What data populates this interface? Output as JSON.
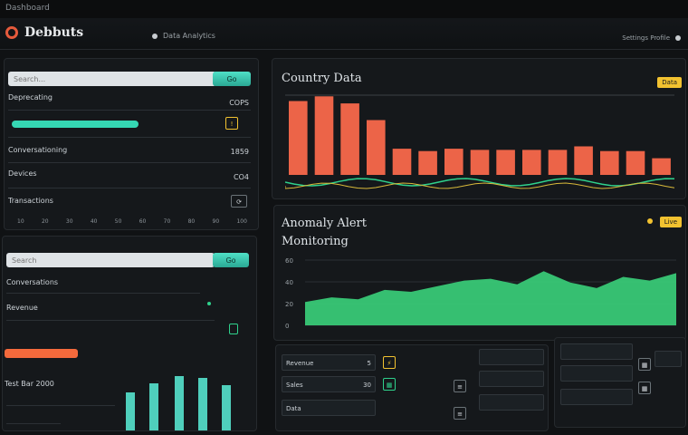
{
  "window": {
    "title": "Dashboard"
  },
  "header": {
    "brand": "Debbuts",
    "center_text": "Data Analytics",
    "right_text": "Settings Profile"
  },
  "left_top": {
    "search_placeholder": "Search...",
    "search_button": "Go",
    "rows": [
      {
        "label": "Deprecating",
        "value": "COPS"
      },
      {
        "label": "",
        "value": ""
      },
      {
        "label": "Conversationing",
        "value": "1859"
      },
      {
        "label": "Devices",
        "value": "CO4"
      },
      {
        "label": "Transactions",
        "value": ""
      }
    ],
    "bar": {
      "fraction": 0.55,
      "color": "#35d7b3"
    },
    "ticks": [
      "10",
      "20",
      "30",
      "40",
      "50",
      "60",
      "70",
      "80",
      "90",
      "100"
    ]
  },
  "left_bottom": {
    "search_placeholder": "Search",
    "search_button": "Go",
    "rows": [
      {
        "label": "Conversations"
      },
      {
        "label": "Revenue"
      },
      {
        "label": "Test Bar 2000"
      }
    ],
    "orange_bar_fraction": 0.35,
    "colors": {
      "orange": "#f46a3c",
      "green": "#2fd18c",
      "cyan": "#59f0d8"
    }
  },
  "chart_top": {
    "title": "Country Data",
    "badge": "Data",
    "chart_data": {
      "type": "bar",
      "values": [
        62,
        66,
        60,
        46,
        22,
        20,
        22,
        21,
        21,
        21,
        21,
        24,
        20,
        20,
        14
      ],
      "ylim": [
        0,
        70
      ],
      "bar_color": "#ec6448"
    }
  },
  "chart_bottom": {
    "title_line1": "Anomaly Alert",
    "title_line2": "Monitoring",
    "badge": "Live",
    "chart_data": {
      "type": "area",
      "y_ticks": [
        "60",
        "40",
        "20",
        "0"
      ],
      "values": [
        25,
        30,
        28,
        38,
        36,
        42,
        48,
        50,
        44,
        58,
        46,
        40,
        52,
        48,
        56
      ],
      "ylim": [
        0,
        70
      ],
      "fill_color": "#3ad27b"
    }
  },
  "bottom_tables": {
    "rows": [
      {
        "label": "Revenue",
        "value": "5"
      },
      {
        "label": "Sales",
        "value": "30"
      },
      {
        "label": "Data",
        "value": ""
      }
    ],
    "icons": [
      "bolt-icon",
      "grid-icon",
      "list-icon"
    ]
  }
}
